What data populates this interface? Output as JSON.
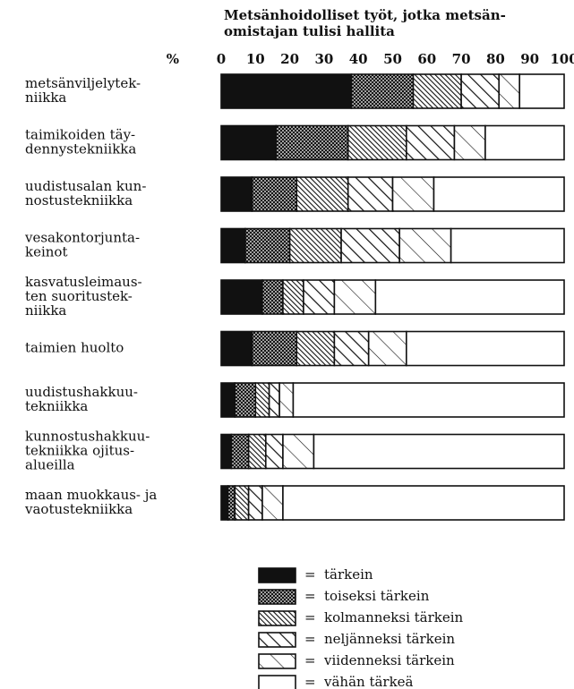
{
  "chart_data": {
    "type": "stacked-barh",
    "title": "Metsänhoidolliset työt, jotka metsän-\nomistajan tulisi hallita",
    "axis_label": "%",
    "xlim": [
      0,
      100
    ],
    "xticks": [
      0,
      10,
      20,
      30,
      40,
      50,
      60,
      70,
      80,
      90,
      100
    ],
    "categories": [
      "metsänviljelytek-\nniikka",
      "taimikoiden täy-\ndennystekniikka",
      "uudistusalan kun-\nnostustekniikka",
      "vesakontorjunta-\nkeinot",
      "kasvatusleimaus-\nten suoritustek-\nniikka",
      "taimien huolto",
      "uudistushakkuu-\ntekniikka",
      "kunnostushakkuu-\ntekniikka ojitus-\nalueilla",
      "maan muokkaus- ja\nvaotustekniikka"
    ],
    "legend_sign": "=",
    "series": [
      {
        "name": "tärkein",
        "color": "#111111",
        "pattern": "solid",
        "values": [
          38,
          16,
          9,
          7,
          12,
          9,
          4,
          3,
          2
        ]
      },
      {
        "name": "toiseksi tärkein",
        "color": "#111111",
        "pattern": "dots",
        "values": [
          18,
          21,
          13,
          13,
          6,
          13,
          6,
          5,
          2
        ]
      },
      {
        "name": "kolmanneksi tärkein",
        "color": "#111111",
        "pattern": "dense-hatch",
        "values": [
          14,
          17,
          15,
          15,
          6,
          11,
          4,
          5,
          4
        ]
      },
      {
        "name": "neljänneksi tärkein",
        "color": "#111111",
        "pattern": "hatch",
        "values": [
          11,
          14,
          13,
          17,
          9,
          10,
          3,
          5,
          4
        ]
      },
      {
        "name": "viidenneksi tärkein",
        "color": "#111111",
        "pattern": "sparse-hatch",
        "values": [
          6,
          9,
          12,
          15,
          12,
          11,
          4,
          9,
          6
        ]
      },
      {
        "name": "vähän tärkeä",
        "color": "#111111",
        "pattern": "none",
        "values": [
          13,
          23,
          38,
          33,
          55,
          46,
          79,
          73,
          82
        ]
      }
    ]
  }
}
